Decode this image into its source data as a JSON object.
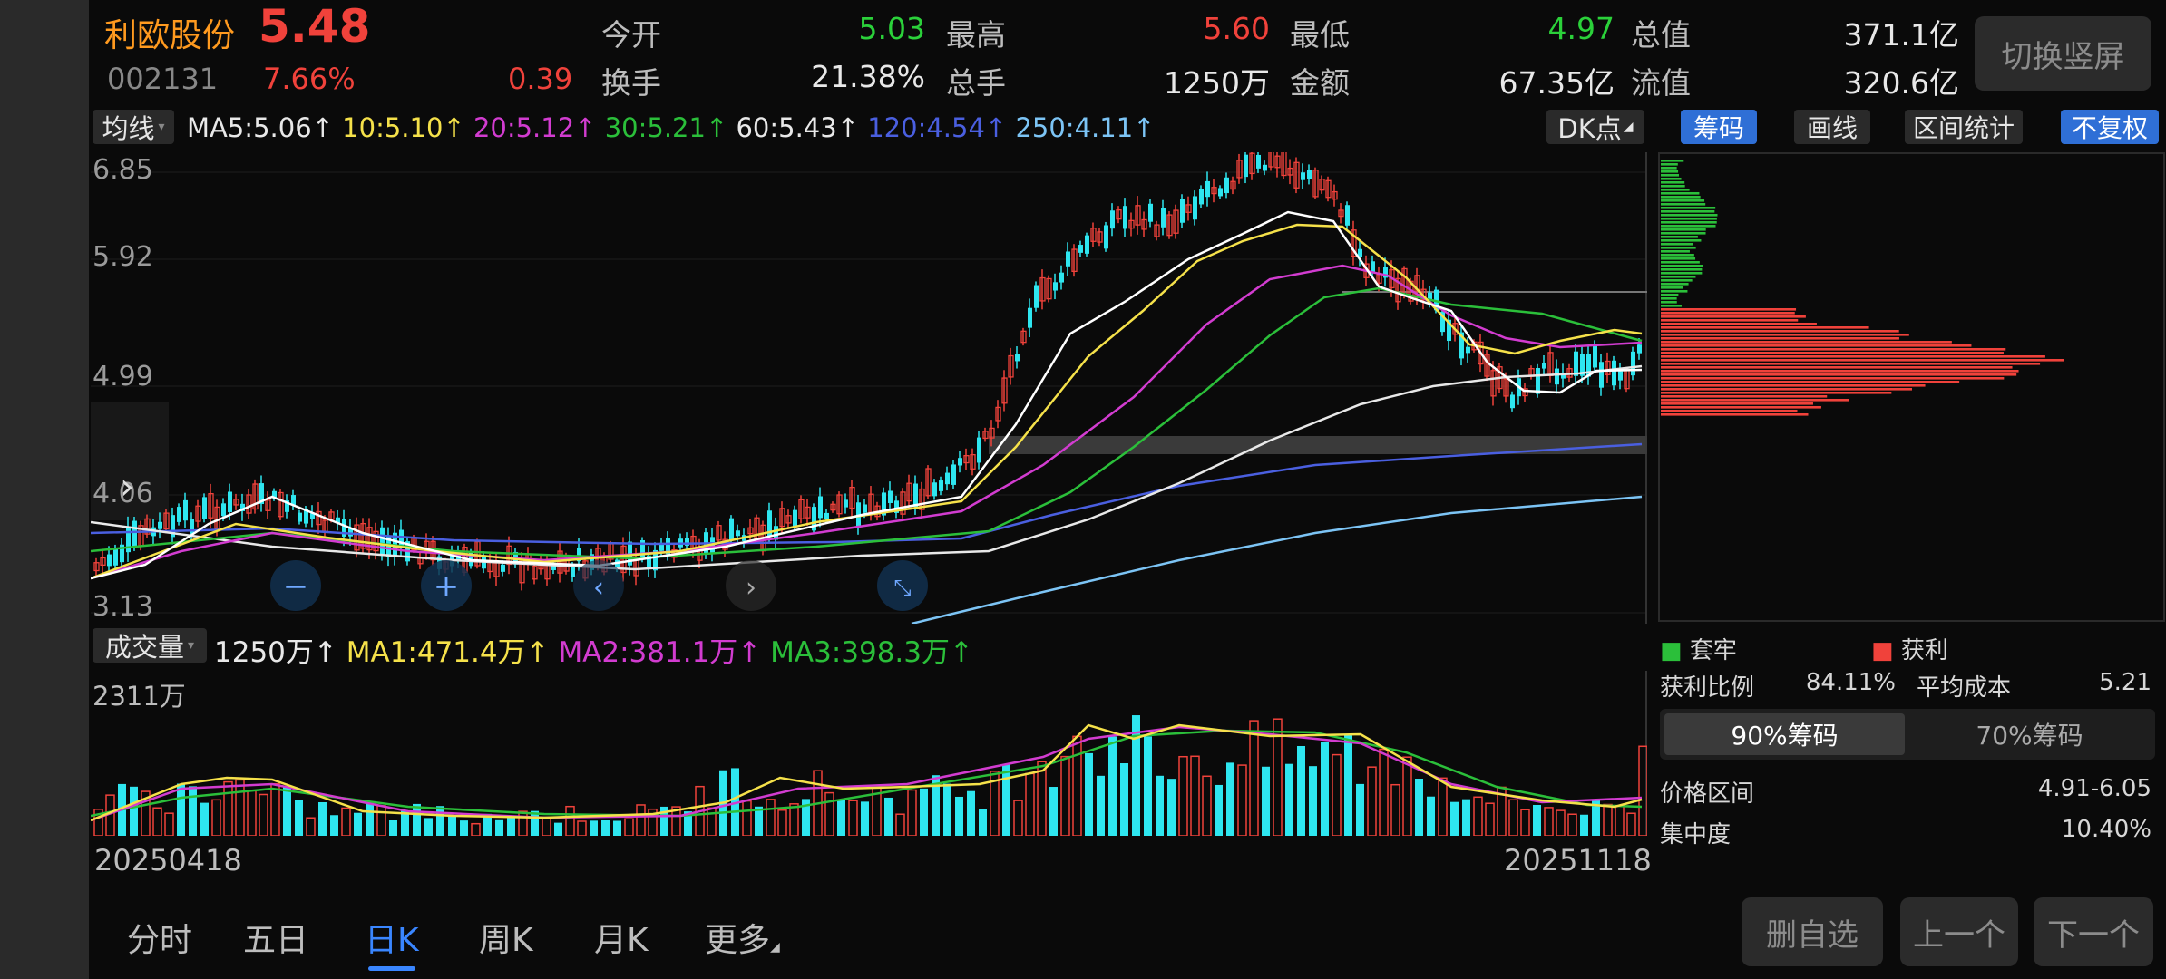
{
  "stock": {
    "name": "利欧股份",
    "price": "5.48",
    "code": "002131",
    "change_pct": "7.66%",
    "change": "0.39"
  },
  "stats": [
    {
      "label": "今开",
      "value": "5.03",
      "color": "green"
    },
    {
      "label": "最高",
      "value": "5.60",
      "color": "red"
    },
    {
      "label": "最低",
      "value": "4.97",
      "color": "green"
    },
    {
      "label": "总值",
      "value": "371.1亿",
      "color": "white"
    },
    {
      "label": "换手",
      "value": "21.38%",
      "color": "white"
    },
    {
      "label": "总手",
      "value": "1250万",
      "color": "white"
    },
    {
      "label": "金额",
      "value": "67.35亿",
      "color": "white"
    },
    {
      "label": "流值",
      "value": "320.6亿",
      "color": "white"
    }
  ],
  "switch_button": "切换竖屏",
  "ma_bar": {
    "selector": "均线",
    "items": [
      {
        "text": "MA5:5.06↑",
        "color": "#e8e8e8"
      },
      {
        "text": "10:5.10↑",
        "color": "#f5e14a"
      },
      {
        "text": "20:5.12↑",
        "color": "#d23cd0"
      },
      {
        "text": "30:5.21↑",
        "color": "#2bbf3a"
      },
      {
        "text": "60:5.43↑",
        "color": "#e8e8e8"
      },
      {
        "text": "120:4.54↑",
        "color": "#4a5fe0"
      },
      {
        "text": "250:4.11↑",
        "color": "#7cc4f5"
      }
    ],
    "dk": "DK点"
  },
  "right_tabs": [
    "筹码",
    "画线",
    "区间统计",
    "不复权"
  ],
  "y_ticks": [
    "6.85",
    "5.92",
    "4.99",
    "4.06",
    "3.13"
  ],
  "volume_bar": {
    "selector": "成交量",
    "items": [
      {
        "text": "1250万↑",
        "color": "#e8e8e8"
      },
      {
        "text": "MA1:471.4万↑",
        "color": "#f5e14a"
      },
      {
        "text": "MA2:381.1万↑",
        "color": "#d23cd0"
      },
      {
        "text": "MA3:398.3万↑",
        "color": "#2bbf3a"
      }
    ],
    "max_label": "2311万"
  },
  "dates": {
    "start": "20250418",
    "end": "20251118"
  },
  "chips": {
    "legend_loss": "套牢",
    "legend_profit": "获利",
    "profit_ratio_label": "获利比例",
    "profit_ratio": "84.11%",
    "avg_cost_label": "平均成本",
    "avg_cost": "5.21",
    "tab_90": "90%筹码",
    "tab_70": "70%筹码",
    "range_label": "价格区间",
    "range": "4.91-6.05",
    "concentration_label": "集中度",
    "concentration": "10.40%"
  },
  "bottom_nav": [
    "分时",
    "五日",
    "日K",
    "周K",
    "月K",
    "更多"
  ],
  "bottom_buttons": [
    "删自选",
    "上一个",
    "下一个"
  ],
  "colors": {
    "up": "#f0423b",
    "down": "#2ee6f0",
    "accent": "#3a86ff"
  }
}
